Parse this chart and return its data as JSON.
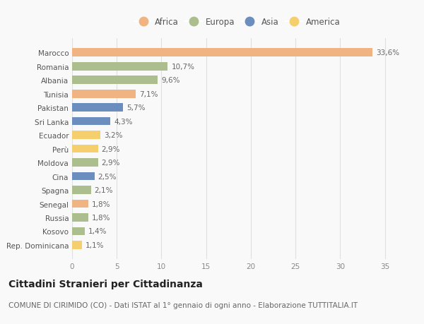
{
  "categories": [
    "Rep. Dominicana",
    "Kosovo",
    "Russia",
    "Senegal",
    "Spagna",
    "Cina",
    "Moldova",
    "Perù",
    "Ecuador",
    "Sri Lanka",
    "Pakistan",
    "Tunisia",
    "Albania",
    "Romania",
    "Marocco"
  ],
  "values": [
    1.1,
    1.4,
    1.8,
    1.8,
    2.1,
    2.5,
    2.9,
    2.9,
    3.2,
    4.3,
    5.7,
    7.1,
    9.6,
    10.7,
    33.6
  ],
  "labels": [
    "1,1%",
    "1,4%",
    "1,8%",
    "1,8%",
    "2,1%",
    "2,5%",
    "2,9%",
    "2,9%",
    "3,2%",
    "4,3%",
    "5,7%",
    "7,1%",
    "9,6%",
    "10,7%",
    "33,6%"
  ],
  "continents": [
    "America",
    "Europa",
    "Europa",
    "Africa",
    "Europa",
    "Asia",
    "Europa",
    "America",
    "America",
    "Asia",
    "Asia",
    "Africa",
    "Europa",
    "Europa",
    "Africa"
  ],
  "colors": {
    "Africa": "#F0B482",
    "Europa": "#ADBE8E",
    "Asia": "#6C8EBF",
    "America": "#F5CE6E"
  },
  "legend_order": [
    "Africa",
    "Europa",
    "Asia",
    "America"
  ],
  "xlim": [
    0,
    37
  ],
  "xticks": [
    0,
    5,
    10,
    15,
    20,
    25,
    30,
    35
  ],
  "title": "Cittadini Stranieri per Cittadinanza",
  "subtitle": "COMUNE DI CIRIMIDO (CO) - Dati ISTAT al 1° gennaio di ogni anno - Elaborazione TUTTITALIA.IT",
  "background_color": "#f9f9f9",
  "bar_height": 0.6,
  "grid_color": "#e0e0e0",
  "title_fontsize": 10,
  "subtitle_fontsize": 7.5,
  "label_fontsize": 7.5,
  "tick_fontsize": 7.5,
  "legend_fontsize": 8.5
}
